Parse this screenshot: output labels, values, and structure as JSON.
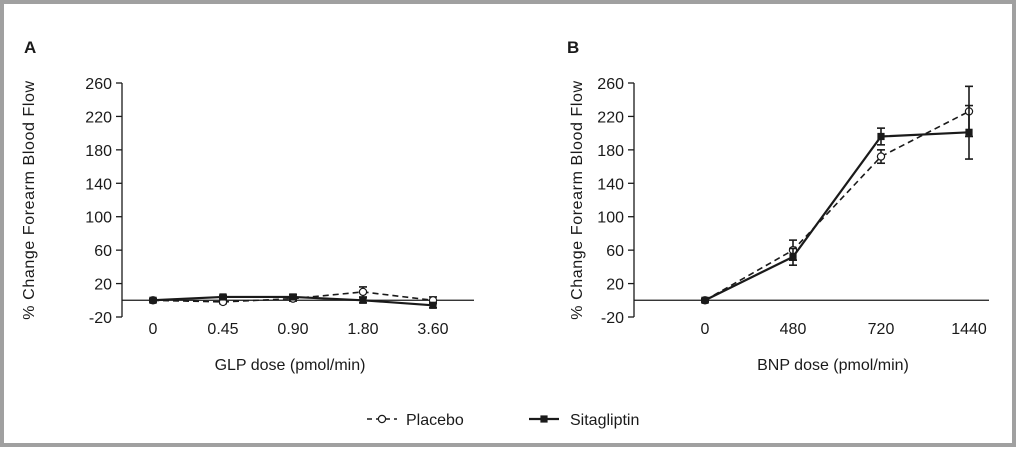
{
  "chart_data": [
    {
      "type": "line",
      "panel_label": "A",
      "xlabel": "GLP dose  (pmol/min)",
      "ylabel": "% Change Forearm Blood Flow",
      "categories": [
        "0",
        "0.45",
        "0.90",
        "1.80",
        "3.60"
      ],
      "ylim": [
        -20,
        260
      ],
      "yticks": [
        -20,
        20,
        60,
        100,
        140,
        180,
        220,
        260
      ],
      "series": [
        {
          "name": "Placebo",
          "values": [
            0,
            -2,
            2,
            10,
            0
          ],
          "errors": [
            2,
            2,
            3,
            6,
            4
          ]
        },
        {
          "name": "Sitagliptin",
          "values": [
            0,
            4,
            4,
            0,
            -6
          ],
          "errors": [
            2,
            2,
            3,
            3,
            3
          ]
        }
      ]
    },
    {
      "type": "line",
      "panel_label": "B",
      "xlabel": "BNP dose (pmol/min)",
      "ylabel": "% Change Forearm Blood Flow",
      "categories": [
        "0",
        "480",
        "720",
        "1440"
      ],
      "ylim": [
        -20,
        260
      ],
      "yticks": [
        -20,
        20,
        60,
        100,
        140,
        180,
        220,
        260
      ],
      "series": [
        {
          "name": "Placebo",
          "values": [
            0,
            60,
            172,
            226
          ],
          "errors": [
            2,
            12,
            8,
            30
          ]
        },
        {
          "name": "Sitagliptin",
          "values": [
            0,
            52,
            196,
            201
          ],
          "errors": [
            2,
            10,
            10,
            32
          ]
        }
      ]
    }
  ],
  "legend": {
    "position": "bottom-center",
    "items": [
      {
        "label": "Placebo",
        "marker": "open-circle",
        "line": "dashed",
        "color": "#1a1a1a"
      },
      {
        "label": "Sitagliptin",
        "marker": "filled-square",
        "line": "solid",
        "color": "#1a1a1a"
      }
    ]
  }
}
